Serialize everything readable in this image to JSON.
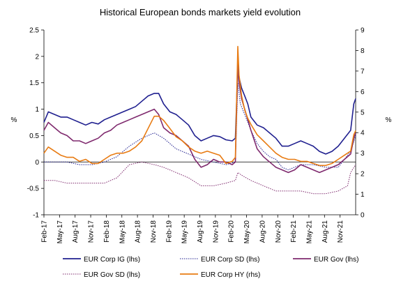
{
  "chart_data": {
    "type": "line",
    "title": "Historical European bonds markets yield evolution",
    "ylabel_left": "%",
    "ylabel_right": "%",
    "ylim_left": [
      -1,
      2.5
    ],
    "yticks_left": [
      -1,
      -0.5,
      0,
      0.5,
      1,
      1.5,
      2,
      2.5
    ],
    "yticks_left_labels": [
      "-1",
      "-0.5",
      "0",
      "0.5",
      "1",
      "1.5",
      "2",
      "2.5"
    ],
    "ylim_right": [
      0,
      9
    ],
    "yticks_right": [
      0,
      1,
      2,
      3,
      4,
      5,
      6,
      7,
      8,
      9
    ],
    "yticks_right_labels": [
      "0",
      "1",
      "2",
      "3",
      "4",
      "5",
      "6",
      "7",
      "8",
      "9"
    ],
    "x_range": [
      2017.08,
      2022.08
    ],
    "xticks": [
      2017.08,
      2017.33,
      2017.58,
      2017.83,
      2018.08,
      2018.33,
      2018.58,
      2018.83,
      2019.08,
      2019.33,
      2019.58,
      2019.83,
      2020.08,
      2020.33,
      2020.58,
      2020.83,
      2021.08,
      2021.33,
      2021.58,
      2021.83
    ],
    "xtick_labels": [
      "Feb-17",
      "May-17",
      "Aug-17",
      "Nov-17",
      "Feb-18",
      "May-18",
      "Aug-18",
      "Nov-18",
      "Feb-19",
      "May-19",
      "Aug-19",
      "Nov-19",
      "Feb-20",
      "May-20",
      "Aug-20",
      "Nov-20",
      "Feb-21",
      "May-21",
      "Aug-21",
      "Nov-21"
    ],
    "legend_position": "bottom",
    "series": [
      {
        "name": "EUR Corp IG (lhs)",
        "axis": "left",
        "color": "#1f1f8f",
        "style": "solid",
        "x": [
          2017.08,
          2017.15,
          2017.25,
          2017.35,
          2017.45,
          2017.55,
          2017.65,
          2017.75,
          2017.85,
          2017.95,
          2018.05,
          2018.15,
          2018.25,
          2018.35,
          2018.45,
          2018.55,
          2018.65,
          2018.75,
          2018.85,
          2018.92,
          2019.0,
          2019.1,
          2019.2,
          2019.3,
          2019.4,
          2019.5,
          2019.6,
          2019.7,
          2019.8,
          2019.9,
          2020.0,
          2020.1,
          2020.15,
          2020.19,
          2020.21,
          2020.25,
          2020.3,
          2020.35,
          2020.4,
          2020.5,
          2020.6,
          2020.7,
          2020.8,
          2020.9,
          2021.0,
          2021.1,
          2021.2,
          2021.3,
          2021.4,
          2021.5,
          2021.6,
          2021.7,
          2021.8,
          2021.9,
          2022.0,
          2022.05,
          2022.08
        ],
        "values": [
          0.75,
          0.95,
          0.9,
          0.85,
          0.85,
          0.8,
          0.75,
          0.7,
          0.75,
          0.72,
          0.8,
          0.85,
          0.9,
          0.95,
          1.0,
          1.05,
          1.15,
          1.25,
          1.3,
          1.3,
          1.1,
          0.95,
          0.9,
          0.8,
          0.7,
          0.5,
          0.4,
          0.45,
          0.5,
          0.48,
          0.42,
          0.4,
          0.45,
          1.8,
          1.6,
          1.4,
          1.25,
          1.1,
          0.85,
          0.7,
          0.65,
          0.55,
          0.45,
          0.3,
          0.3,
          0.35,
          0.4,
          0.35,
          0.3,
          0.2,
          0.15,
          0.2,
          0.3,
          0.45,
          0.6,
          1.1,
          1.2
        ]
      },
      {
        "name": "EUR Corp SD (lhs)",
        "axis": "left",
        "color": "#1f1f8f",
        "style": "dotted",
        "x": [
          2017.08,
          2017.25,
          2017.45,
          2017.65,
          2017.85,
          2018.05,
          2018.25,
          2018.45,
          2018.65,
          2018.85,
          2019.0,
          2019.2,
          2019.4,
          2019.6,
          2019.8,
          2020.0,
          2020.15,
          2020.19,
          2020.23,
          2020.3,
          2020.4,
          2020.5,
          2020.6,
          2020.7,
          2020.8,
          2020.9,
          2021.0,
          2021.2,
          2021.4,
          2021.6,
          2021.8,
          2022.0,
          2022.08
        ],
        "values": [
          0.0,
          0.0,
          0.0,
          -0.05,
          -0.05,
          0.0,
          0.1,
          0.3,
          0.45,
          0.55,
          0.45,
          0.25,
          0.15,
          0.05,
          0.0,
          -0.05,
          0.0,
          1.5,
          1.1,
          0.9,
          0.6,
          0.35,
          0.2,
          0.1,
          0.05,
          -0.1,
          -0.15,
          -0.05,
          -0.05,
          -0.1,
          -0.1,
          0.2,
          0.5
        ]
      },
      {
        "name": "EUR Gov (lhs)",
        "axis": "left",
        "color": "#7f2a6e",
        "style": "solid",
        "x": [
          2017.08,
          2017.15,
          2017.25,
          2017.35,
          2017.45,
          2017.55,
          2017.65,
          2017.75,
          2017.85,
          2017.95,
          2018.05,
          2018.15,
          2018.25,
          2018.35,
          2018.45,
          2018.55,
          2018.65,
          2018.75,
          2018.85,
          2018.92,
          2019.0,
          2019.1,
          2019.2,
          2019.3,
          2019.4,
          2019.5,
          2019.6,
          2019.7,
          2019.8,
          2019.9,
          2020.0,
          2020.1,
          2020.15,
          2020.19,
          2020.21,
          2020.25,
          2020.3,
          2020.4,
          2020.5,
          2020.6,
          2020.7,
          2020.8,
          2020.9,
          2021.0,
          2021.1,
          2021.2,
          2021.3,
          2021.4,
          2021.5,
          2021.6,
          2021.7,
          2021.8,
          2021.9,
          2022.0,
          2022.05,
          2022.08
        ],
        "values": [
          0.6,
          0.75,
          0.65,
          0.55,
          0.5,
          0.4,
          0.4,
          0.35,
          0.4,
          0.45,
          0.55,
          0.6,
          0.7,
          0.75,
          0.8,
          0.85,
          0.9,
          0.95,
          1.0,
          0.9,
          0.65,
          0.55,
          0.5,
          0.4,
          0.3,
          0.05,
          -0.1,
          -0.05,
          0.05,
          0.0,
          0.0,
          -0.05,
          0.0,
          1.85,
          1.5,
          1.2,
          1.0,
          0.6,
          0.25,
          0.1,
          0.0,
          -0.1,
          -0.15,
          -0.2,
          -0.15,
          -0.05,
          -0.1,
          -0.15,
          -0.2,
          -0.15,
          -0.1,
          -0.05,
          0.05,
          0.15,
          0.45,
          0.55
        ]
      },
      {
        "name": "EUR Gov SD (lhs)",
        "axis": "left",
        "color": "#7f2a6e",
        "style": "dotted",
        "x": [
          2017.08,
          2017.25,
          2017.45,
          2017.65,
          2017.85,
          2018.05,
          2018.25,
          2018.45,
          2018.65,
          2018.85,
          2019.0,
          2019.2,
          2019.4,
          2019.6,
          2019.8,
          2020.0,
          2020.15,
          2020.19,
          2020.25,
          2020.4,
          2020.6,
          2020.8,
          2021.0,
          2021.2,
          2021.4,
          2021.6,
          2021.8,
          2021.95,
          2022.0,
          2022.08
        ],
        "values": [
          -0.35,
          -0.35,
          -0.4,
          -0.4,
          -0.4,
          -0.4,
          -0.3,
          -0.05,
          0.0,
          -0.05,
          -0.1,
          -0.2,
          -0.3,
          -0.45,
          -0.45,
          -0.4,
          -0.35,
          -0.2,
          -0.25,
          -0.35,
          -0.45,
          -0.55,
          -0.55,
          -0.55,
          -0.6,
          -0.6,
          -0.55,
          -0.45,
          -0.2,
          -0.05
        ]
      },
      {
        "name": "EUR Corp HY (rhs)",
        "axis": "right",
        "color": "#e87b12",
        "style": "solid",
        "x": [
          2017.08,
          2017.15,
          2017.25,
          2017.35,
          2017.45,
          2017.55,
          2017.65,
          2017.75,
          2017.85,
          2017.95,
          2018.05,
          2018.15,
          2018.25,
          2018.35,
          2018.45,
          2018.55,
          2018.65,
          2018.75,
          2018.85,
          2018.92,
          2019.0,
          2019.1,
          2019.2,
          2019.3,
          2019.4,
          2019.5,
          2019.6,
          2019.7,
          2019.8,
          2019.9,
          2020.0,
          2020.1,
          2020.15,
          2020.19,
          2020.21,
          2020.25,
          2020.3,
          2020.35,
          2020.4,
          2020.5,
          2020.6,
          2020.7,
          2020.8,
          2020.9,
          2021.0,
          2021.1,
          2021.2,
          2021.3,
          2021.4,
          2021.5,
          2021.6,
          2021.7,
          2021.8,
          2021.9,
          2022.0,
          2022.05,
          2022.08
        ],
        "values": [
          3.0,
          3.3,
          3.1,
          2.9,
          2.8,
          2.8,
          2.6,
          2.7,
          2.5,
          2.5,
          2.7,
          2.9,
          3.0,
          3.0,
          3.1,
          3.3,
          3.6,
          4.2,
          4.8,
          4.8,
          4.6,
          4.2,
          3.8,
          3.6,
          3.3,
          3.1,
          3.0,
          3.1,
          3.0,
          2.9,
          2.5,
          2.6,
          2.8,
          8.2,
          6.8,
          5.8,
          5.1,
          4.7,
          4.4,
          3.9,
          3.6,
          3.3,
          3.0,
          2.8,
          2.7,
          2.7,
          2.6,
          2.6,
          2.5,
          2.4,
          2.4,
          2.5,
          2.7,
          2.9,
          3.1,
          3.9,
          4.1
        ]
      }
    ]
  }
}
